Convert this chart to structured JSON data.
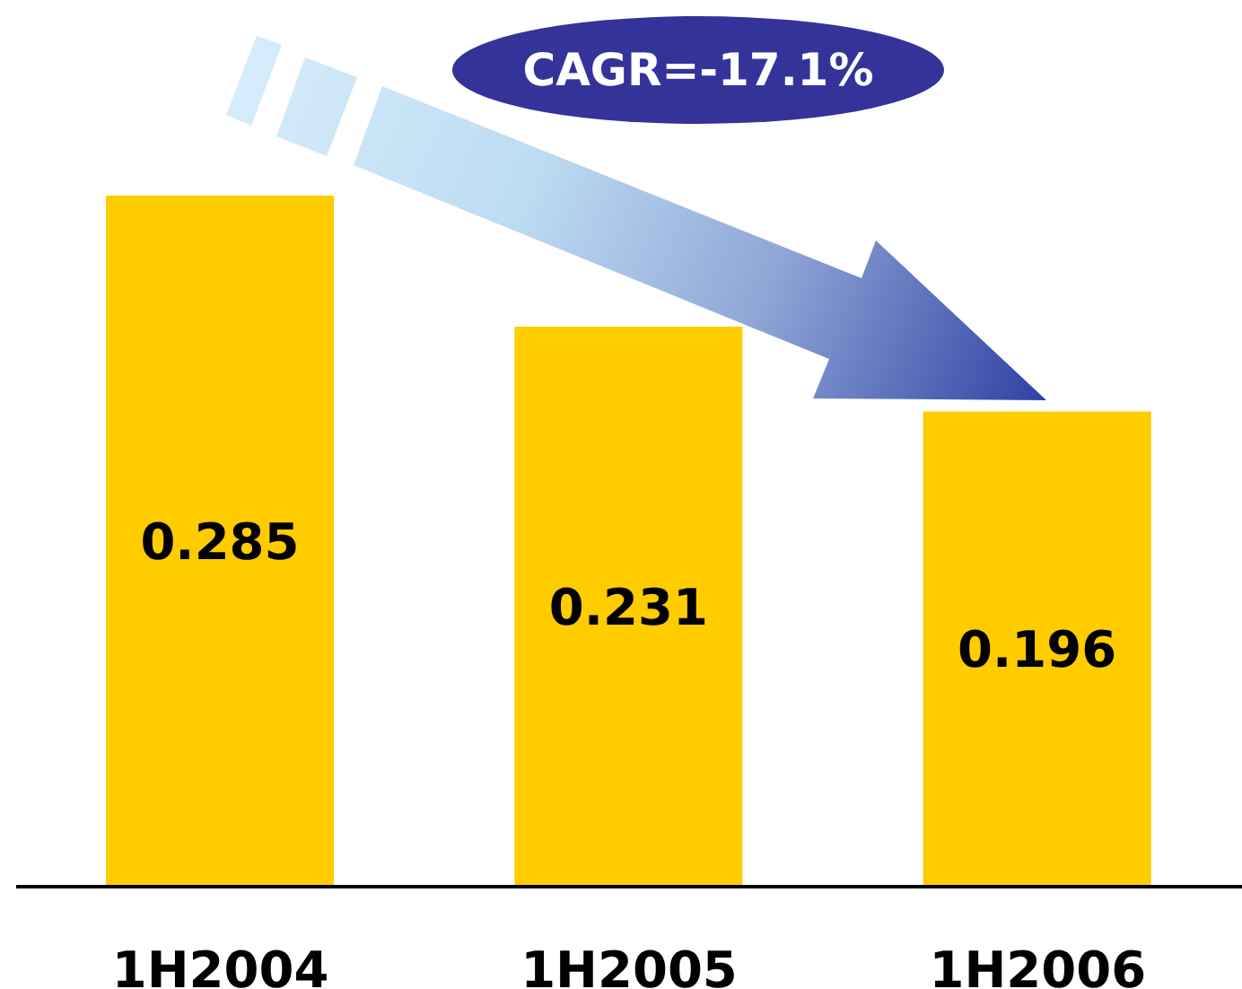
{
  "chart_data": {
    "type": "bar",
    "categories": [
      "1H2004",
      "1H2005",
      "1H2006"
    ],
    "values": [
      0.285,
      0.231,
      0.196
    ],
    "color": "#ffcc00",
    "data_labels": true,
    "tick_labels": "x",
    "annotations": [
      "CAGR=-17.1%"
    ]
  }
}
